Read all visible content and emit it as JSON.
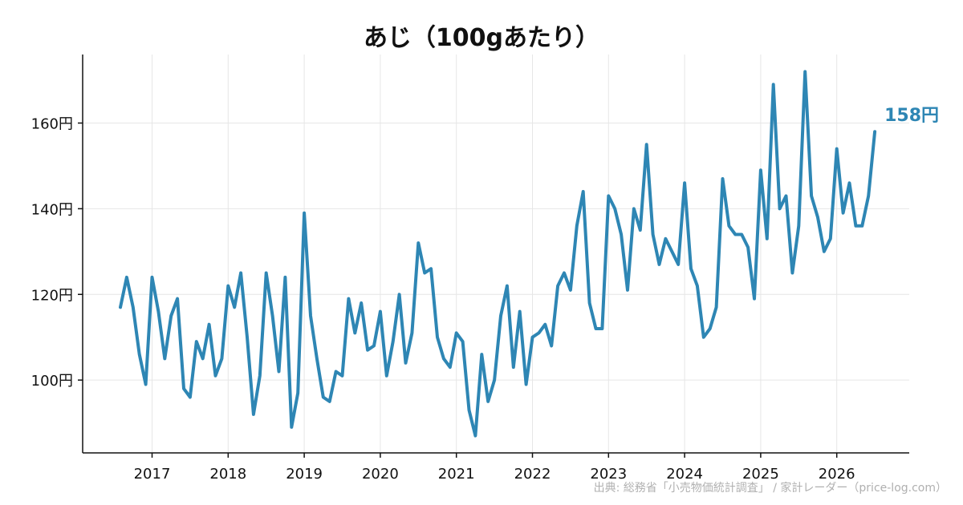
{
  "chart_data": {
    "type": "line",
    "title": "あじ（100gあたり）",
    "xlabel": "",
    "ylabel": "",
    "x_start": "2016-08",
    "x_end": "2026-07",
    "x_ticks": [
      "2017",
      "2018",
      "2019",
      "2020",
      "2021",
      "2022",
      "2023",
      "2024",
      "2025",
      "2026"
    ],
    "y_ticks": [
      100,
      120,
      140,
      160
    ],
    "y_tick_labels": [
      "100円",
      "120円",
      "140円",
      "160円"
    ],
    "ylim": [
      83,
      176
    ],
    "grid": true,
    "legend": "none",
    "end_label": "158円",
    "color": "#2e86b4",
    "series": [
      {
        "values": [
          117,
          124,
          117,
          106,
          99,
          124,
          116,
          105,
          115,
          119,
          98,
          96,
          109,
          105,
          113,
          101,
          105,
          122,
          117,
          125,
          110,
          92,
          101,
          125,
          115,
          102,
          124,
          89,
          97,
          139,
          115,
          105,
          96,
          95,
          102,
          101,
          119,
          111,
          118,
          107,
          108,
          116,
          101,
          109,
          120,
          104,
          111,
          132,
          125,
          126,
          110,
          105,
          103,
          111,
          109,
          93,
          87,
          106,
          95,
          100,
          115,
          122,
          103,
          116,
          99,
          110,
          111,
          113,
          108,
          122,
          125,
          121,
          136,
          144,
          118,
          112,
          112,
          143,
          140,
          134,
          121,
          140,
          135,
          155,
          134,
          127,
          133,
          130,
          127,
          146,
          126,
          122,
          110,
          112,
          117,
          147,
          136,
          134,
          134,
          131,
          119,
          149,
          133,
          169,
          140,
          143,
          125,
          136,
          172,
          143,
          138,
          130,
          133,
          154,
          139,
          146,
          136,
          136,
          143,
          158
        ]
      }
    ]
  },
  "source": "出典: 総務省「小売物価統計調査」 / 家計レーダー（price-log.com）"
}
